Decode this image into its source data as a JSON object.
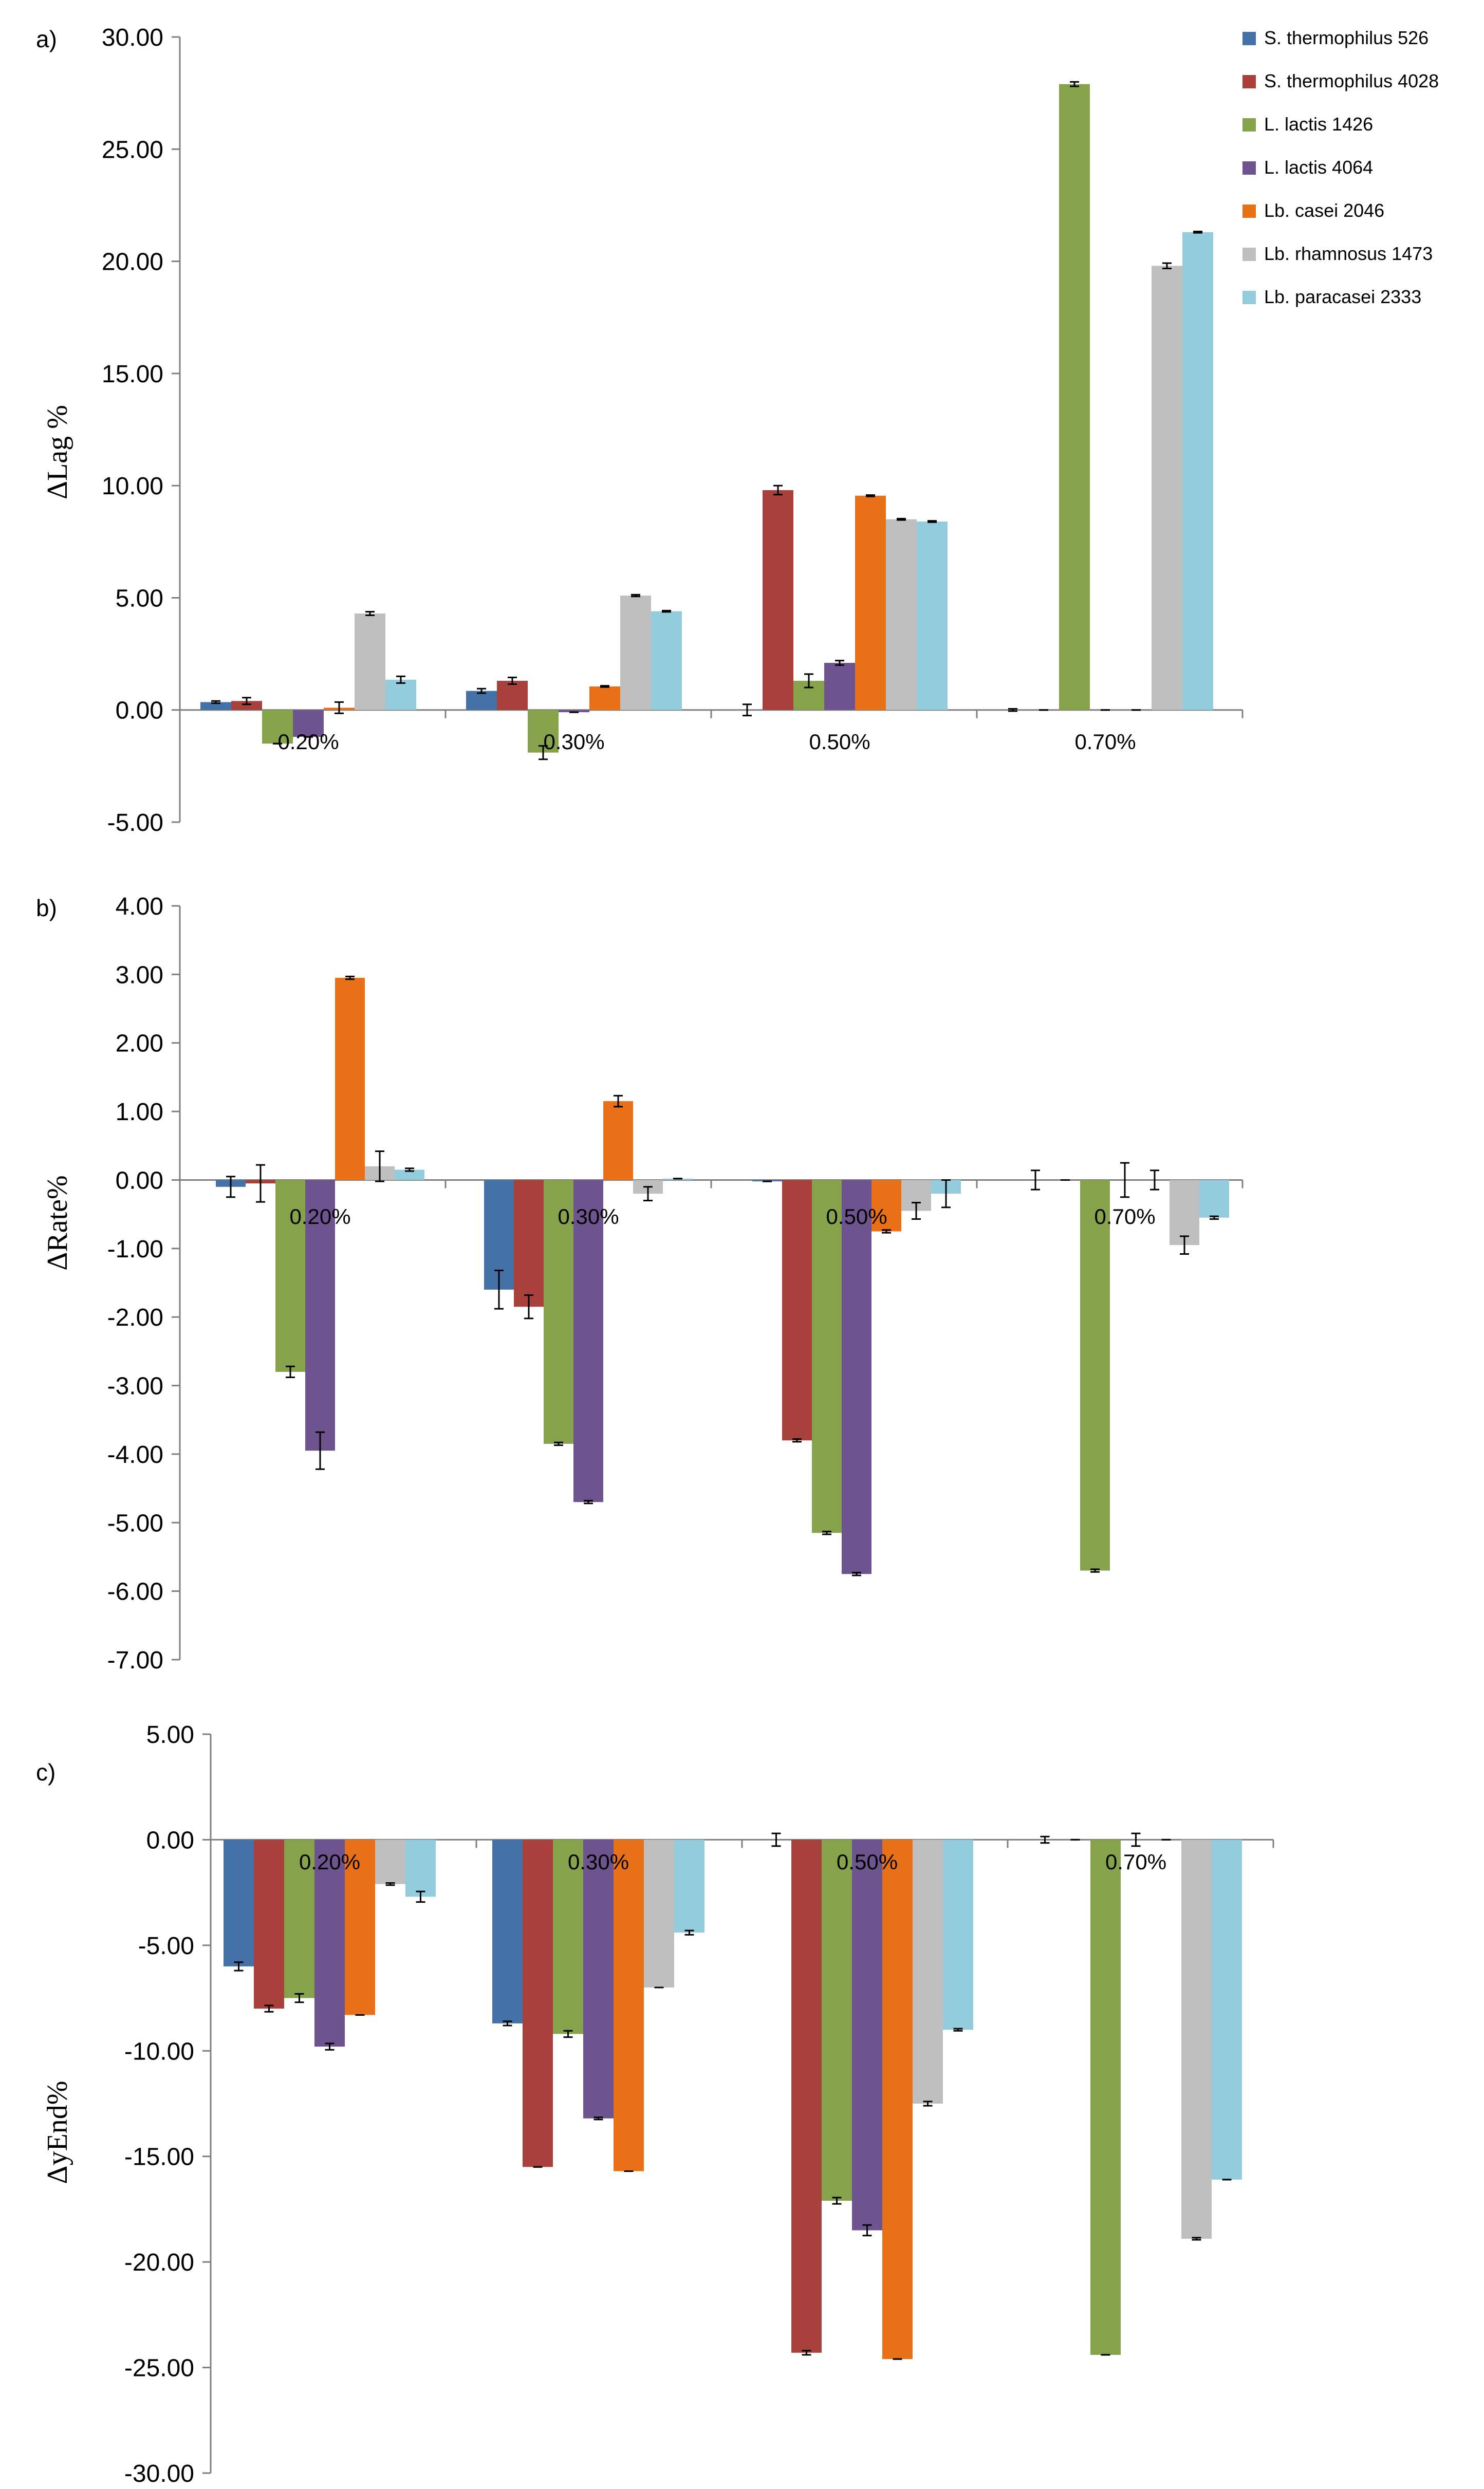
{
  "colors": [
    "#4472a8",
    "#a8403c",
    "#86a24a",
    "#6e548f",
    "#e87118",
    "#bfbfbf",
    "#93cddd"
  ],
  "legend": {
    "entries": [
      "S. thermophilus 526",
      "S. thermophilus 4028",
      "L. lactis 1426",
      "L. lactis 4064",
      "Lb. casei 2046",
      "Lb. rhamnosus 1473",
      "Lb. paracasei 2333"
    ],
    "placement": "top-right of panel a"
  },
  "chart_data": [
    {
      "panel": "a)",
      "type": "bar",
      "ylabel": "ΔLag %",
      "ylim": [
        -5,
        30
      ],
      "ytick_step": 5,
      "ytick_labels": [
        "30.00",
        "25.00",
        "20.00",
        "15.00",
        "10.00",
        "5.00",
        "0.00",
        "-5.00"
      ],
      "categories": [
        "0.20%",
        "0.30%",
        "0.50%",
        "0.70%"
      ],
      "series": [
        {
          "name": "S. thermophilus 526",
          "values": [
            0.35,
            0.85,
            0.0,
            0.0
          ],
          "errors": [
            0.05,
            0.1,
            0.25,
            0.05
          ]
        },
        {
          "name": "S. thermophilus 4028",
          "values": [
            0.4,
            1.3,
            9.8,
            0.0
          ],
          "errors": [
            0.15,
            0.15,
            0.2,
            0.0
          ]
        },
        {
          "name": "L. lactis 1426",
          "values": [
            -1.5,
            -1.9,
            1.3,
            27.9
          ],
          "errors": [
            0.0,
            0.3,
            0.3,
            0.1
          ]
        },
        {
          "name": "L. lactis 4064",
          "values": [
            -1.2,
            -0.1,
            2.1,
            0.0
          ],
          "errors": [
            0.0,
            0.0,
            0.1,
            0.0
          ]
        },
        {
          "name": "Lb. casei 2046",
          "values": [
            0.1,
            1.05,
            9.55,
            0.0
          ],
          "errors": [
            0.25,
            0.03,
            0.03,
            0.0
          ]
        },
        {
          "name": "Lb. rhamnosus 1473",
          "values": [
            4.3,
            5.1,
            8.5,
            19.8
          ],
          "errors": [
            0.08,
            0.04,
            0.03,
            0.12
          ]
        },
        {
          "name": "Lb. paracasei 2333",
          "values": [
            1.35,
            4.4,
            8.4,
            21.3
          ],
          "errors": [
            0.15,
            0.03,
            0.03,
            0.03
          ]
        }
      ]
    },
    {
      "panel": "b)",
      "type": "bar",
      "ylabel": "ΔRate%",
      "ylim": [
        -7,
        4
      ],
      "ytick_step": 1,
      "ytick_labels": [
        "4.00",
        "3.00",
        "2.00",
        "1.00",
        "0.00",
        "-1.00",
        "-2.00",
        "-3.00",
        "-4.00",
        "-5.00",
        "-6.00",
        "-7.00"
      ],
      "categories": [
        "0.20%",
        "0.30%",
        "0.50%",
        "0.70%"
      ],
      "series": [
        {
          "name": "S. thermophilus 526",
          "values": [
            -0.1,
            -1.6,
            -0.02,
            0.0
          ],
          "errors": [
            0.15,
            0.28,
            0.0,
            0.14
          ]
        },
        {
          "name": "S. thermophilus 4028",
          "values": [
            -0.05,
            -1.85,
            -3.8,
            0.0
          ],
          "errors": [
            0.27,
            0.17,
            0.02,
            0.0
          ]
        },
        {
          "name": "L. lactis 1426",
          "values": [
            -2.8,
            -3.85,
            -5.15,
            -5.7
          ],
          "errors": [
            0.08,
            0.02,
            0.02,
            0.02
          ]
        },
        {
          "name": "L. lactis 4064",
          "values": [
            -3.95,
            -4.7,
            -5.75,
            0.0
          ],
          "errors": [
            0.27,
            0.02,
            0.02,
            0.25
          ]
        },
        {
          "name": "Lb. casei 2046",
          "values": [
            2.95,
            1.15,
            -0.75,
            0.0
          ],
          "errors": [
            0.02,
            0.08,
            0.02,
            0.14
          ]
        },
        {
          "name": "Lb. rhamnosus 1473",
          "values": [
            0.2,
            -0.2,
            -0.45,
            -0.95
          ],
          "errors": [
            0.22,
            0.1,
            0.12,
            0.13
          ]
        },
        {
          "name": "Lb. paracasei 2333",
          "values": [
            0.15,
            0.02,
            -0.2,
            -0.55
          ],
          "errors": [
            0.02,
            0.0,
            0.2,
            0.02
          ]
        }
      ]
    },
    {
      "panel": "c)",
      "type": "bar",
      "ylabel": "ΔyEnd%",
      "ylim": [
        -30,
        5
      ],
      "ytick_step": 5,
      "ytick_labels": [
        "5.00",
        "0.00",
        "-5.00",
        "-10.00",
        "-15.00",
        "-20.00",
        "-25.00",
        "-30.00"
      ],
      "categories": [
        "0.20%",
        "0.30%",
        "0.50%",
        "0.70%"
      ],
      "series": [
        {
          "name": "S. thermophilus 526",
          "values": [
            -6.0,
            -8.7,
            0.0,
            0.0
          ],
          "errors": [
            0.2,
            0.1,
            0.3,
            0.15
          ]
        },
        {
          "name": "S. thermophilus 4028",
          "values": [
            -8.0,
            -15.5,
            -24.3,
            0.0
          ],
          "errors": [
            0.15,
            0.0,
            0.1,
            0.0
          ]
        },
        {
          "name": "L. lactis 1426",
          "values": [
            -7.5,
            -9.2,
            -17.1,
            -24.4
          ],
          "errors": [
            0.2,
            0.15,
            0.15,
            0.0
          ]
        },
        {
          "name": "L. lactis 4064",
          "values": [
            -9.8,
            -13.2,
            -18.5,
            0.0
          ],
          "errors": [
            0.15,
            0.05,
            0.25,
            0.3
          ]
        },
        {
          "name": "Lb. casei 2046",
          "values": [
            -8.3,
            -15.7,
            -24.6,
            0.0
          ],
          "errors": [
            0.0,
            0.0,
            0.0,
            0.0
          ]
        },
        {
          "name": "Lb. rhamnosus 1473",
          "values": [
            -2.1,
            -7.0,
            -12.5,
            -18.9
          ],
          "errors": [
            0.05,
            0.0,
            0.1,
            0.05
          ]
        },
        {
          "name": "Lb. paracasei 2333",
          "values": [
            -2.7,
            -4.4,
            -9.0,
            -16.1
          ],
          "errors": [
            0.25,
            0.1,
            0.05,
            0.0
          ]
        }
      ]
    }
  ]
}
